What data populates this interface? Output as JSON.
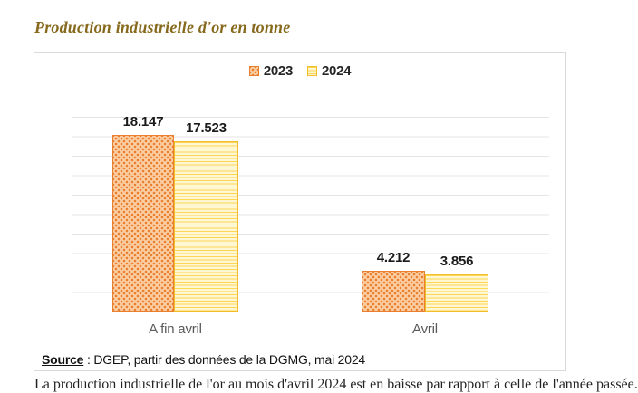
{
  "page": {
    "title": "Production industrielle d'or en tonne",
    "body_text_fragment": "La production industrielle de l'or au mois d'avril 2024 est en baisse par rapport à celle de l'année passée."
  },
  "chart_data": {
    "type": "bar",
    "title": "Production industrielle d'or en tonne",
    "categories": [
      "A fin avril",
      "Avril"
    ],
    "series": [
      {
        "name": "2023",
        "values": [
          18.147,
          4.212
        ],
        "value_labels": [
          "18.147",
          "4.212"
        ],
        "pattern": "diagonal-dots",
        "accent_color": "#ED7D31",
        "fill_color": "#FBCDA2",
        "border_color": "#E8802F"
      },
      {
        "name": "2024",
        "values": [
          17.523,
          3.856
        ],
        "value_labels": [
          "17.523",
          "3.856"
        ],
        "pattern": "horizontal-lines",
        "accent_color": "#FFC000",
        "fill_color": "#FFF6D2",
        "border_color": "#F2BC2B"
      }
    ],
    "ylim": [
      0,
      20
    ],
    "gridline_step": 2,
    "grid": true,
    "legend_position": "top-center",
    "y_axis_labels_visible": false
  },
  "source": {
    "label": "Source",
    "rest": " : DGEP,  partir des données de la DGMG, mai 2024"
  }
}
